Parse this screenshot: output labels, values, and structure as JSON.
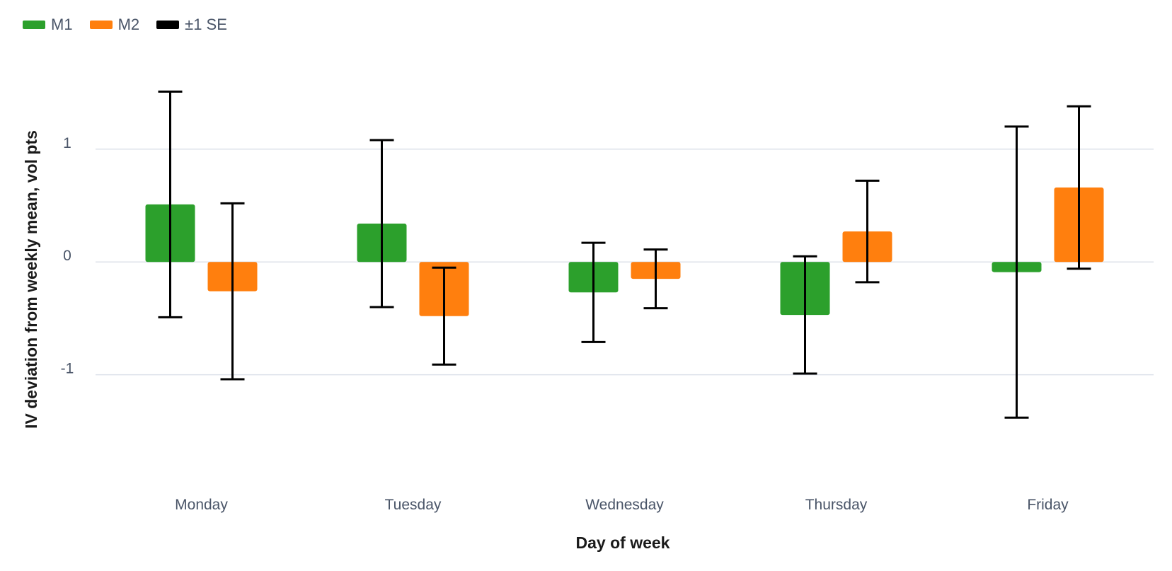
{
  "legend": {
    "m1": "M1",
    "m2": "M2",
    "se": "±1 SE"
  },
  "colors": {
    "m1": "#2ca02c",
    "m2": "#ff7f0e",
    "se": "#000000",
    "grid": "#dde1ea"
  },
  "chart_data": {
    "type": "bar",
    "categories": [
      "Monday",
      "Tuesday",
      "Wednesday",
      "Thursday",
      "Friday"
    ],
    "series": [
      {
        "name": "M1",
        "values": [
          0.51,
          0.34,
          -0.27,
          -0.47,
          -0.09
        ],
        "se": [
          1.0,
          0.74,
          0.44,
          0.52,
          1.29
        ]
      },
      {
        "name": "M2",
        "values": [
          -0.26,
          -0.48,
          -0.15,
          0.27,
          0.66
        ],
        "se": [
          0.78,
          0.43,
          0.26,
          0.45,
          0.72
        ]
      }
    ],
    "xlabel": "Day of week",
    "ylabel": "IV deviation from weekly mean, vol pts",
    "yticks": [
      {
        "value": 1,
        "label": "1"
      },
      {
        "value": 0,
        "label": "0"
      },
      {
        "value": -1,
        "label": "-1"
      }
    ],
    "ylim": [
      -1.78,
      1.72
    ],
    "grid": true,
    "legend_position": "top-left"
  }
}
